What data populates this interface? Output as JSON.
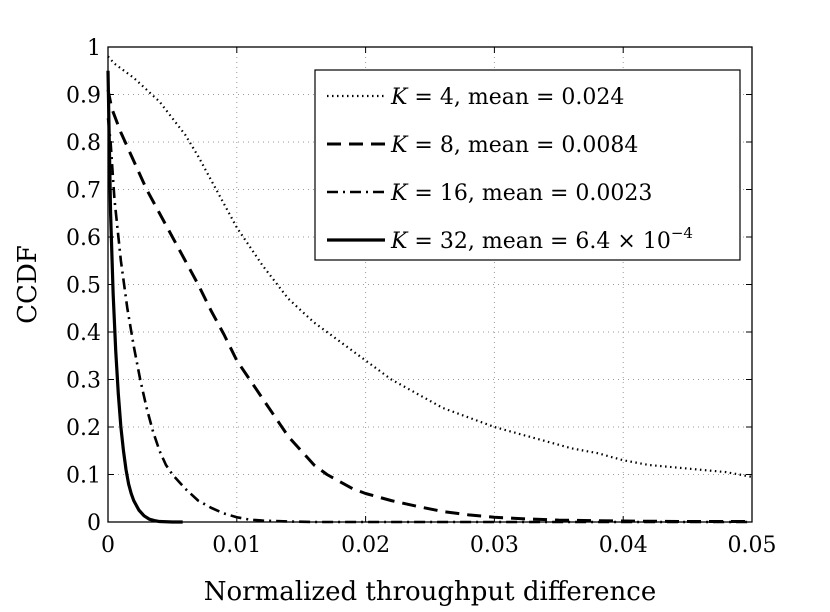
{
  "chart_data": {
    "type": "line",
    "title": "",
    "xlabel": "Normalized throughput difference",
    "ylabel": "CCDF",
    "xlim": [
      0,
      0.05
    ],
    "ylim": [
      0,
      1
    ],
    "grid": true,
    "legend_position": "top-right",
    "x_ticks": [
      {
        "value": 0,
        "label": "0"
      },
      {
        "value": 0.01,
        "label": "0.01"
      },
      {
        "value": 0.02,
        "label": "0.02"
      },
      {
        "value": 0.03,
        "label": "0.03"
      },
      {
        "value": 0.04,
        "label": "0.04"
      },
      {
        "value": 0.05,
        "label": "0.05"
      }
    ],
    "y_ticks": [
      {
        "value": 0,
        "label": "0"
      },
      {
        "value": 0.1,
        "label": "0.1"
      },
      {
        "value": 0.2,
        "label": "0.2"
      },
      {
        "value": 0.3,
        "label": "0.3"
      },
      {
        "value": 0.4,
        "label": "0.4"
      },
      {
        "value": 0.5,
        "label": "0.5"
      },
      {
        "value": 0.6,
        "label": "0.6"
      },
      {
        "value": 0.7,
        "label": "0.7"
      },
      {
        "value": 0.8,
        "label": "0.8"
      },
      {
        "value": 0.9,
        "label": "0.9"
      },
      {
        "value": 1,
        "label": "1"
      }
    ],
    "series": [
      {
        "name": "K = 4, mean = 0.024",
        "legend_k": "K",
        "legend_rest": " = 4, mean = 0.024",
        "legend_sup": "",
        "style": "dotted",
        "color": "#000000",
        "x": [
          0,
          0.0005,
          0.001,
          0.002,
          0.003,
          0.004,
          0.005,
          0.006,
          0.007,
          0.008,
          0.009,
          0.01,
          0.012,
          0.014,
          0.016,
          0.018,
          0.02,
          0.022,
          0.024,
          0.026,
          0.028,
          0.03,
          0.032,
          0.034,
          0.036,
          0.038,
          0.04,
          0.042,
          0.044,
          0.046,
          0.048,
          0.05
        ],
        "y": [
          0.98,
          0.965,
          0.955,
          0.935,
          0.91,
          0.885,
          0.85,
          0.815,
          0.77,
          0.72,
          0.67,
          0.62,
          0.54,
          0.47,
          0.42,
          0.38,
          0.34,
          0.3,
          0.27,
          0.24,
          0.22,
          0.2,
          0.185,
          0.17,
          0.155,
          0.145,
          0.13,
          0.12,
          0.115,
          0.11,
          0.105,
          0.095
        ]
      },
      {
        "name": "K = 8, mean = 0.0084",
        "legend_k": "K",
        "legend_rest": " = 8, mean = 0.0084",
        "legend_sup": "",
        "style": "dashed",
        "color": "#000000",
        "x": [
          0,
          0.0003,
          0.001,
          0.002,
          0.003,
          0.004,
          0.005,
          0.006,
          0.007,
          0.008,
          0.009,
          0.01,
          0.011,
          0.012,
          0.013,
          0.014,
          0.015,
          0.016,
          0.017,
          0.018,
          0.019,
          0.02,
          0.022,
          0.024,
          0.026,
          0.028,
          0.03,
          0.032,
          0.035,
          0.04,
          0.045,
          0.05
        ],
        "y": [
          0.91,
          0.87,
          0.82,
          0.76,
          0.7,
          0.65,
          0.6,
          0.55,
          0.5,
          0.445,
          0.395,
          0.34,
          0.3,
          0.26,
          0.22,
          0.18,
          0.15,
          0.12,
          0.1,
          0.085,
          0.07,
          0.06,
          0.045,
          0.033,
          0.022,
          0.015,
          0.01,
          0.007,
          0.004,
          0.002,
          0.001,
          0.001
        ]
      },
      {
        "name": "K = 16, mean = 0.0023",
        "legend_k": "K",
        "legend_rest": " = 16, mean = 0.0023",
        "legend_sup": "",
        "style": "dashdot",
        "color": "#000000",
        "x": [
          0,
          0.0002,
          0.0005,
          0.001,
          0.0015,
          0.002,
          0.0025,
          0.003,
          0.0035,
          0.004,
          0.0045,
          0.005,
          0.0055,
          0.006,
          0.007,
          0.008,
          0.009,
          0.01,
          0.011,
          0.012,
          0.014,
          0.016,
          0.018,
          0.02,
          0.03,
          0.04,
          0.05
        ],
        "y": [
          0.85,
          0.8,
          0.68,
          0.55,
          0.45,
          0.37,
          0.3,
          0.24,
          0.19,
          0.15,
          0.12,
          0.1,
          0.085,
          0.07,
          0.045,
          0.03,
          0.018,
          0.01,
          0.005,
          0.003,
          0.001,
          0,
          0,
          0,
          0,
          0,
          0
        ]
      },
      {
        "name": "K = 32, mean = 6.4 × 10^−4",
        "legend_k": "K",
        "legend_rest": " = 32, mean = 6.4 × 10",
        "legend_sup": "−4",
        "style": "solid",
        "color": "#000000",
        "x": [
          0,
          0.0001,
          0.0002,
          0.0004,
          0.0006,
          0.0008,
          0.001,
          0.0012,
          0.0014,
          0.0016,
          0.0018,
          0.002,
          0.0024,
          0.0028,
          0.0032,
          0.0036,
          0.004,
          0.005,
          0.0058
        ],
        "y": [
          0.95,
          0.8,
          0.65,
          0.48,
          0.36,
          0.27,
          0.2,
          0.15,
          0.11,
          0.08,
          0.06,
          0.045,
          0.025,
          0.013,
          0.006,
          0.003,
          0.001,
          0,
          0
        ]
      }
    ]
  }
}
